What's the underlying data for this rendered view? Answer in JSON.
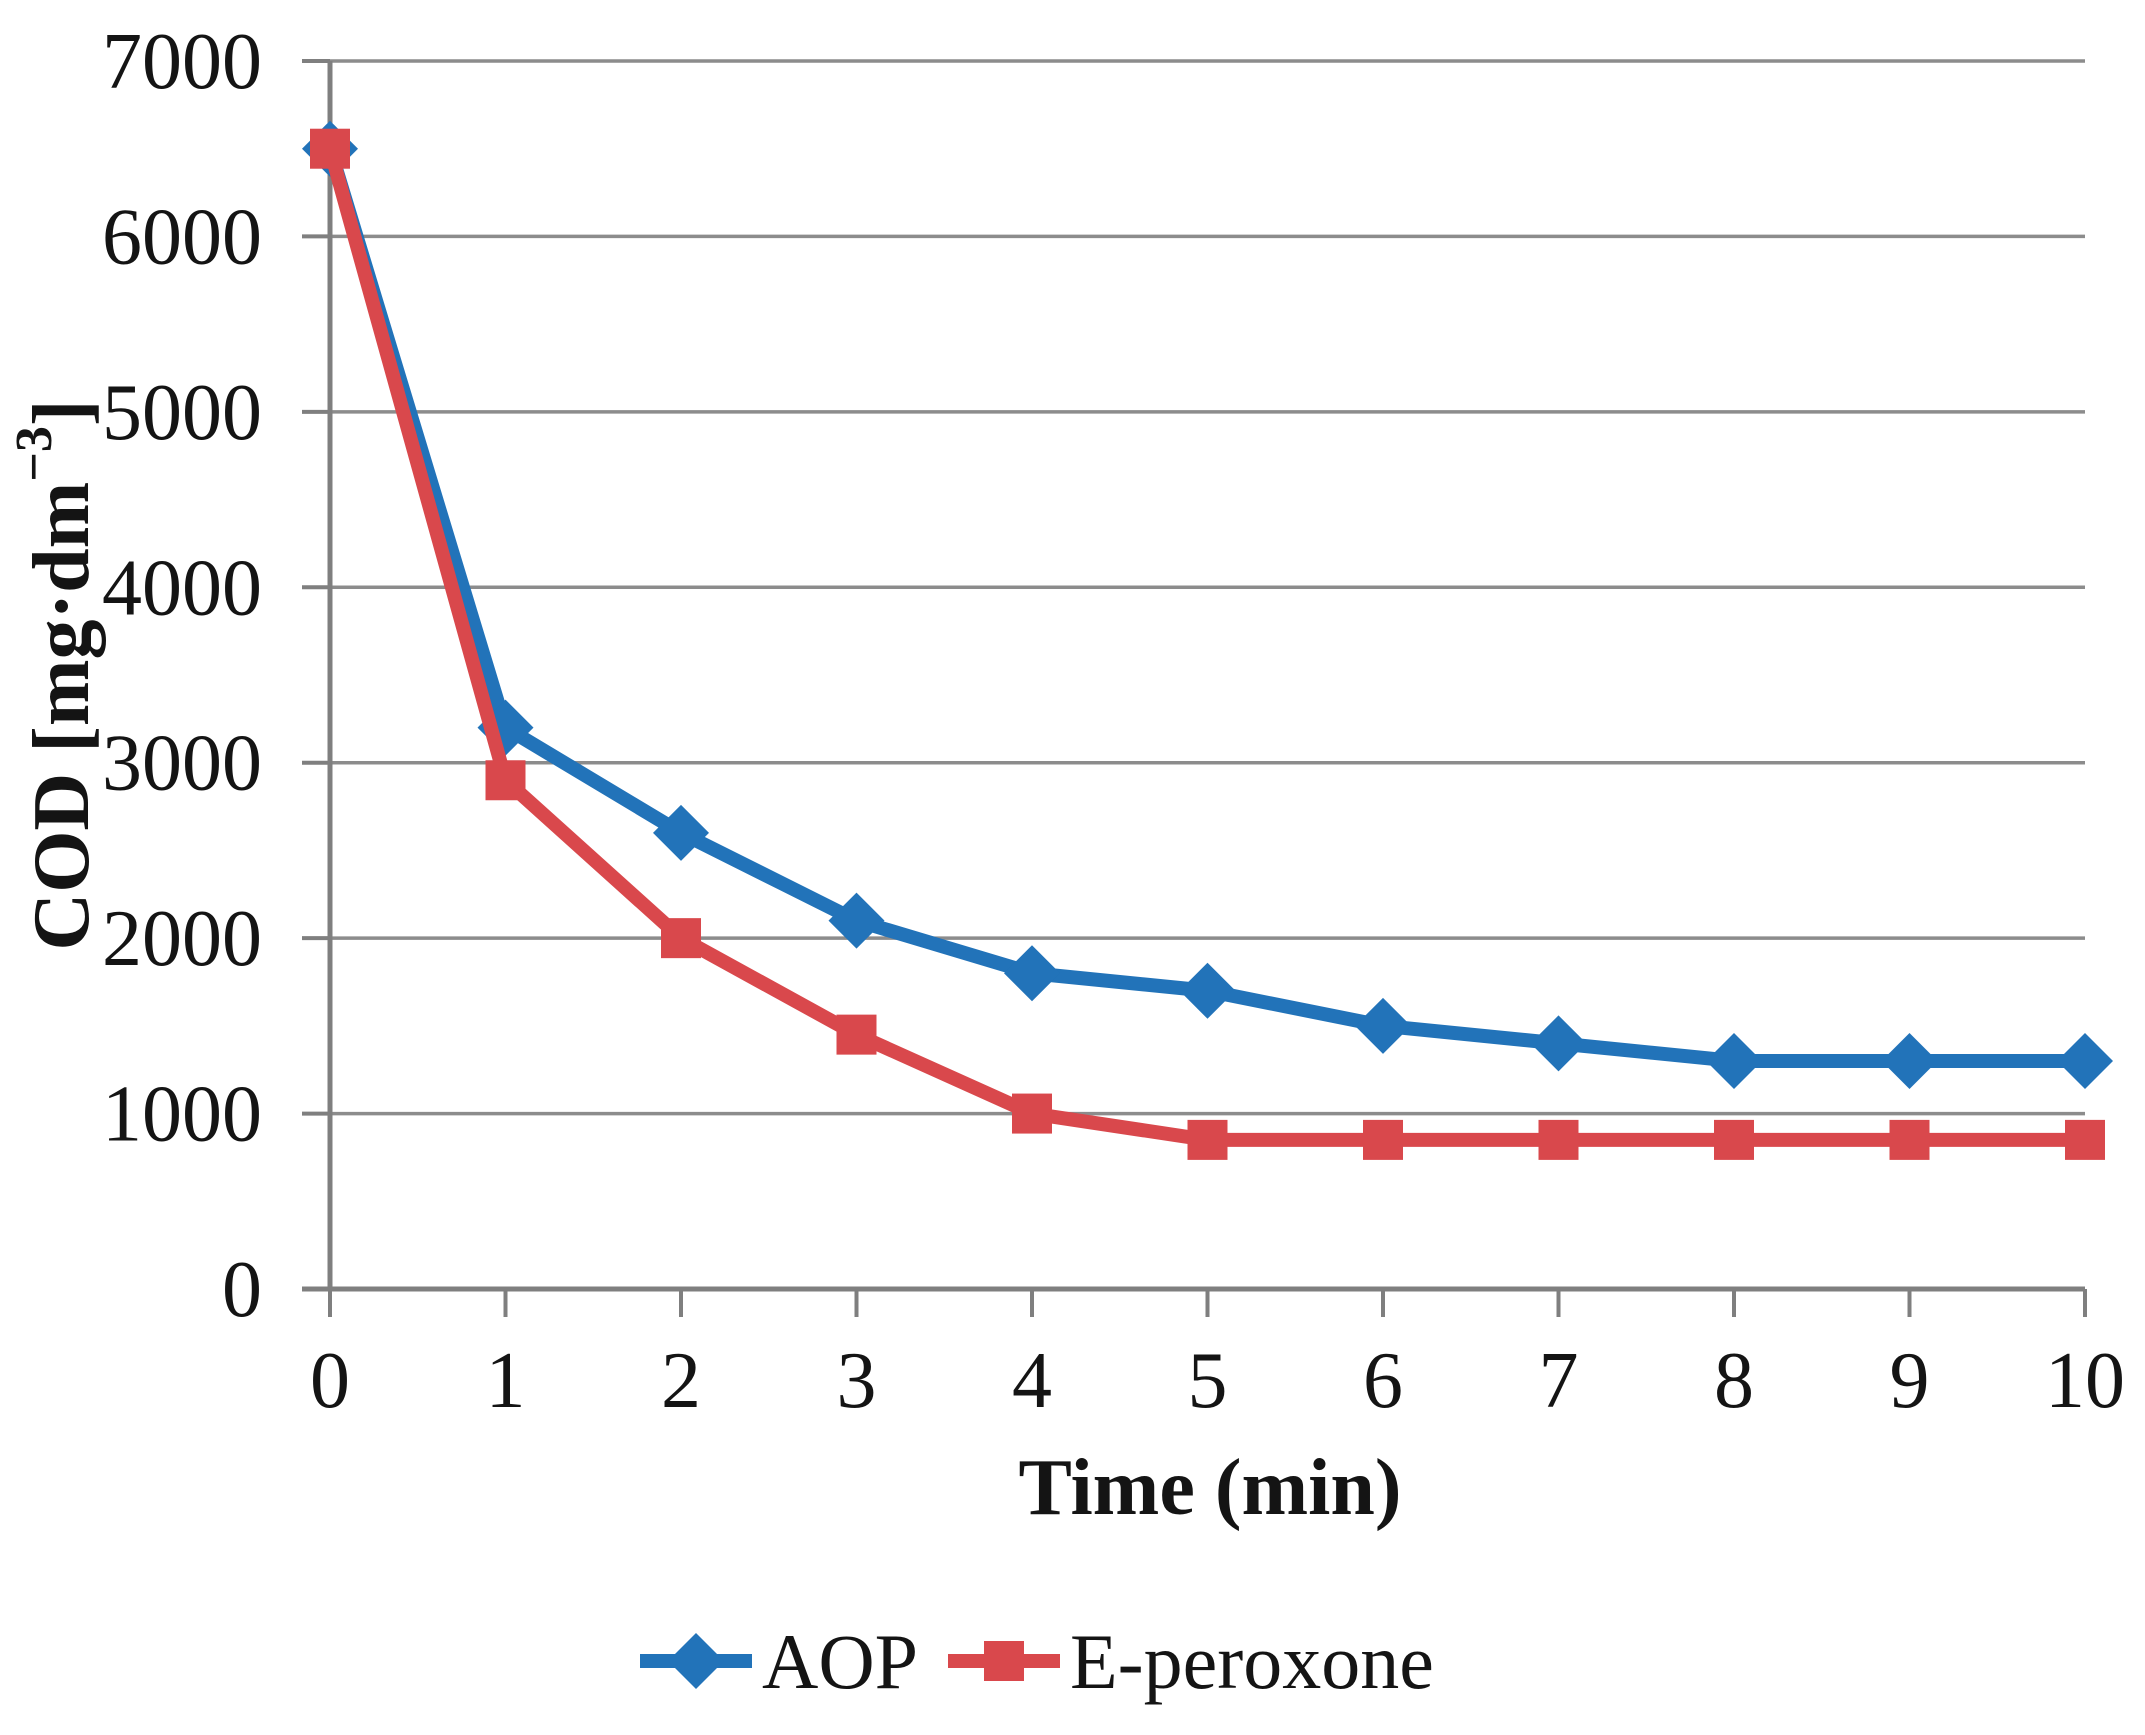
{
  "chart_data": {
    "type": "line",
    "title": "",
    "xlabel": "Time (min)",
    "ylabel": "COD [mg·dm⁻³]",
    "xlim": [
      0,
      10
    ],
    "ylim": [
      0,
      7000
    ],
    "xticks": [
      "0",
      "1",
      "2",
      "3",
      "4",
      "5",
      "6",
      "7",
      "8",
      "9",
      "10"
    ],
    "yticks": [
      "0",
      "1000",
      "2000",
      "3000",
      "4000",
      "5000",
      "6000",
      "7000"
    ],
    "grid": "horizontal-only",
    "legend_position": "bottom-center",
    "x": [
      0,
      1,
      2,
      3,
      4,
      5,
      6,
      7,
      8,
      9,
      10
    ],
    "series": [
      {
        "name": "AOP",
        "marker": "diamond",
        "color": "#2273B9",
        "values": [
          6500,
          3200,
          2600,
          2100,
          1800,
          1700,
          1500,
          1400,
          1300,
          1300,
          1300
        ]
      },
      {
        "name": "E-peroxone",
        "marker": "square",
        "color": "#D9484C",
        "values": [
          6500,
          2900,
          2000,
          1450,
          1000,
          850,
          850,
          850,
          850,
          850,
          850
        ]
      }
    ],
    "colors": {
      "grid": "#8C8C8C",
      "axis": "#7F7F7F",
      "text": "#141414",
      "background": "#FFFFFF"
    }
  },
  "legend": {
    "items": [
      "AOP",
      "E-peroxone"
    ]
  }
}
